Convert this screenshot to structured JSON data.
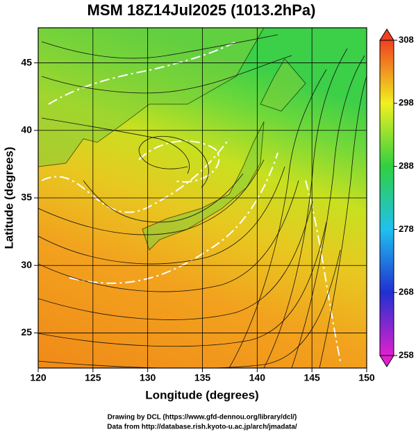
{
  "chart_data": {
    "type": "map",
    "title": "MSM 18Z14Jul2025 (1013.2hPa)",
    "x_label": "Longitude (degrees)",
    "y_label": "Latitude  (degrees)",
    "xlim": [
      120,
      150
    ],
    "ylim": [
      22.4,
      47.6
    ],
    "xticks": [
      120,
      125,
      130,
      135,
      140,
      145,
      150
    ],
    "yticks": [
      25,
      30,
      35,
      40,
      45
    ],
    "grid": true,
    "colorbar": {
      "lim": [
        258,
        308
      ],
      "ticks": [
        258,
        268,
        278,
        288,
        298,
        308
      ]
    },
    "credits": [
      "Drawing by DCL (https://www.gfd-dennou.org/library/dcl/)",
      "Data from http://database.rish.kyoto-u.ac.jp/arch/jmadata/"
    ]
  }
}
